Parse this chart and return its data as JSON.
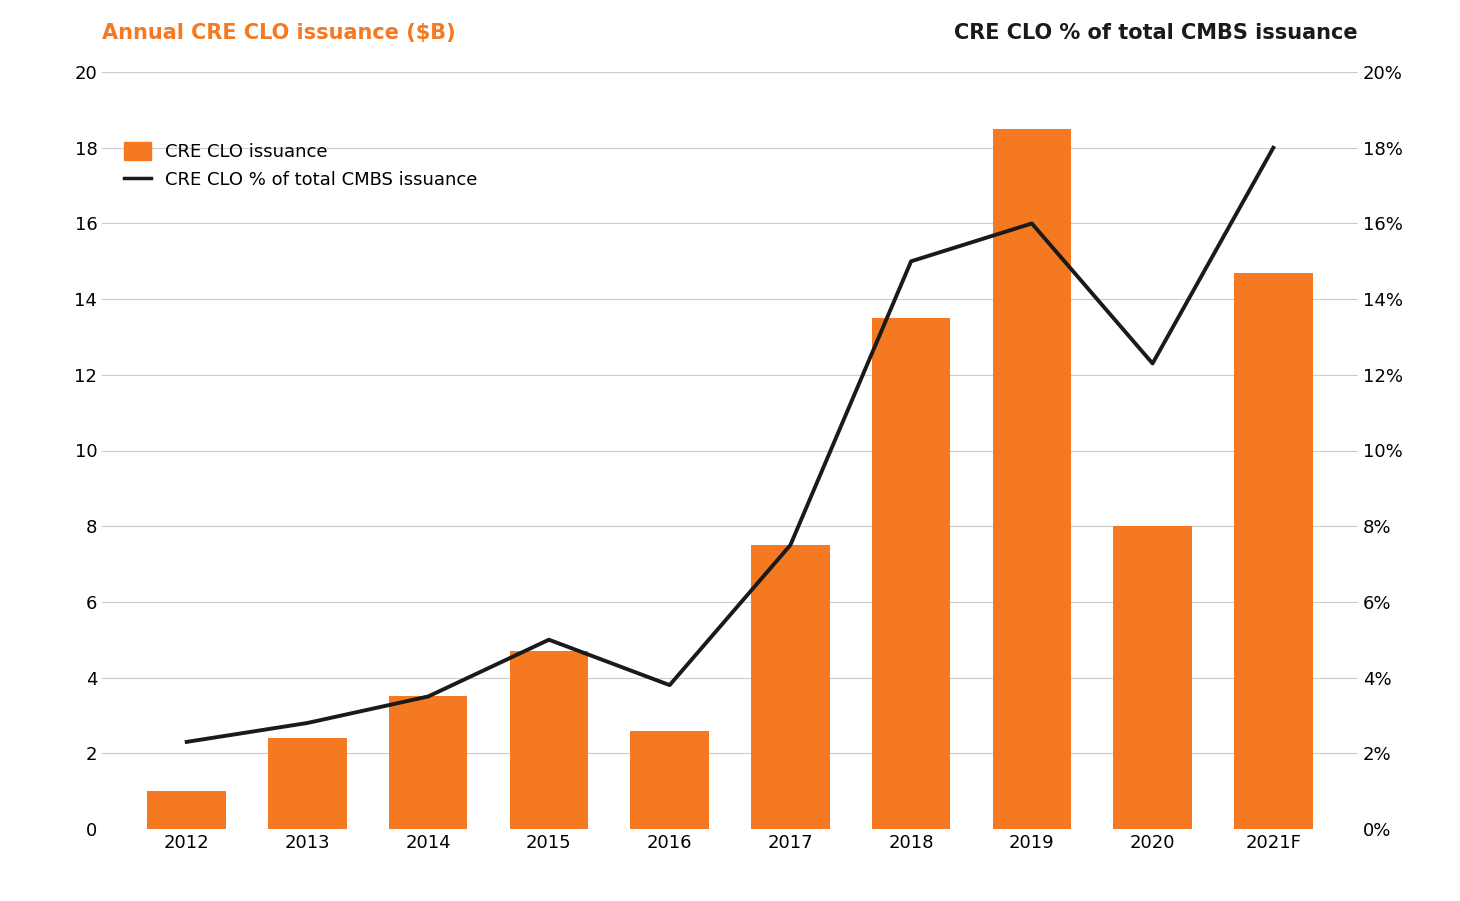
{
  "categories": [
    "2012",
    "2013",
    "2014",
    "2015",
    "2016",
    "2017",
    "2018",
    "2019",
    "2020",
    "2021F"
  ],
  "bar_values": [
    1.0,
    2.4,
    3.5,
    4.7,
    2.6,
    7.5,
    13.5,
    18.5,
    8.0,
    14.7
  ],
  "line_values": [
    2.3,
    2.8,
    3.5,
    5.0,
    3.8,
    7.5,
    15.0,
    16.0,
    12.3,
    18.0
  ],
  "bar_color": "#F47920",
  "line_color": "#1a1a1a",
  "left_title": "Annual CRE CLO issuance ($B)",
  "left_title_color": "#F47920",
  "right_title": "CRE CLO % of total CMBS issuance",
  "right_title_color": "#1a1a1a",
  "legend_bar_label": "CRE CLO issuance",
  "legend_line_label": "CRE CLO % of total CMBS issuance",
  "ylim_left": [
    0,
    20
  ],
  "ylim_right": [
    0,
    20
  ],
  "yticks_left": [
    0,
    2,
    4,
    6,
    8,
    10,
    12,
    14,
    16,
    18,
    20
  ],
  "ytick_labels_right": [
    "0%",
    "2%",
    "4%",
    "6%",
    "8%",
    "10%",
    "12%",
    "14%",
    "16%",
    "18%",
    "20%"
  ],
  "background_color": "#ffffff",
  "grid_color": "#cccccc",
  "title_fontsize": 15,
  "tick_fontsize": 13,
  "legend_fontsize": 13,
  "bar_width": 0.65
}
